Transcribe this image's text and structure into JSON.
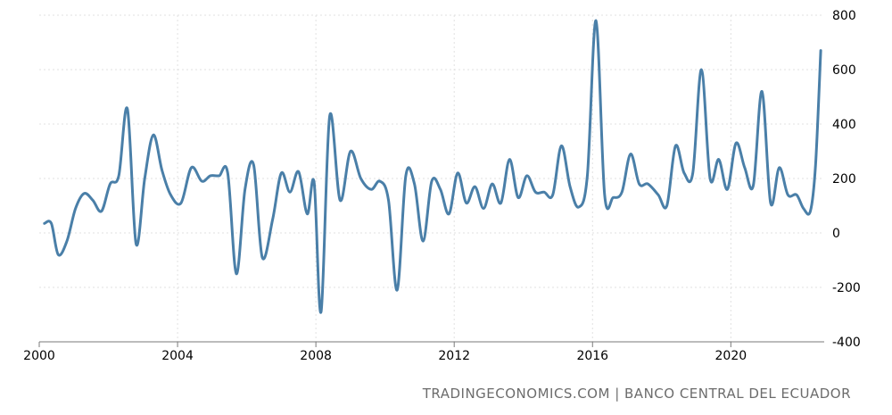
{
  "chart_data": {
    "type": "line",
    "title": "",
    "xlabel": "",
    "ylabel": "",
    "xlim": [
      2000.0,
      2022.7
    ],
    "ylim": [
      -400,
      800
    ],
    "x_ticks": [
      2000,
      2004,
      2008,
      2012,
      2016,
      2020
    ],
    "x_tick_labels": [
      "2000",
      "2004",
      "2008",
      "2012",
      "2016",
      "2020"
    ],
    "y_ticks": [
      800,
      600,
      400,
      200,
      0,
      -200,
      -400
    ],
    "y_tick_labels": [
      "800",
      "600",
      "400",
      "200",
      "0",
      "-200",
      "-400"
    ],
    "grid": true,
    "line_color": "#4a7fa8",
    "series": [
      {
        "x": [
          2000.15,
          2000.35,
          2000.55,
          2000.8,
          2001.05,
          2001.3,
          2001.55,
          2001.8,
          2002.05,
          2002.3,
          2002.55,
          2002.8,
          2003.05,
          2003.3,
          2003.55,
          2003.8,
          2004.1,
          2004.4,
          2004.7,
          2004.95,
          2005.2,
          2005.45,
          2005.7,
          2005.95,
          2006.2,
          2006.45,
          2006.75,
          2007.0,
          2007.25,
          2007.5,
          2007.75,
          2007.95,
          2008.15,
          2008.4,
          2008.7,
          2009.0,
          2009.3,
          2009.6,
          2009.85,
          2010.1,
          2010.35,
          2010.6,
          2010.85,
          2011.1,
          2011.35,
          2011.6,
          2011.85,
          2012.1,
          2012.35,
          2012.6,
          2012.85,
          2013.1,
          2013.35,
          2013.6,
          2013.85,
          2014.1,
          2014.35,
          2014.6,
          2014.85,
          2015.1,
          2015.35,
          2015.6,
          2015.85,
          2016.1,
          2016.35,
          2016.6,
          2016.85,
          2017.1,
          2017.35,
          2017.6,
          2017.9,
          2018.15,
          2018.4,
          2018.65,
          2018.9,
          2019.15,
          2019.4,
          2019.65,
          2019.9,
          2020.15,
          2020.4,
          2020.65,
          2020.9,
          2021.15,
          2021.4,
          2021.65,
          2021.9,
          2022.1,
          2022.3,
          2022.45,
          2022.6
        ],
        "values": [
          35,
          35,
          -80,
          -30,
          90,
          145,
          120,
          80,
          180,
          210,
          455,
          -40,
          200,
          360,
          230,
          140,
          110,
          240,
          190,
          210,
          210,
          220,
          -150,
          160,
          250,
          -90,
          50,
          220,
          150,
          225,
          70,
          185,
          -290,
          430,
          120,
          300,
          200,
          160,
          190,
          120,
          -210,
          210,
          180,
          -30,
          190,
          160,
          70,
          220,
          110,
          170,
          90,
          180,
          110,
          270,
          130,
          210,
          150,
          150,
          140,
          320,
          170,
          95,
          210,
          780,
          140,
          130,
          150,
          290,
          180,
          180,
          140,
          100,
          320,
          220,
          220,
          600,
          200,
          270,
          160,
          330,
          240,
          175,
          520,
          110,
          240,
          140,
          140,
          90,
          80,
          250,
          670
        ]
      }
    ],
    "source": "TRADINGECONOMICS.COM  |  BANCO CENTRAL DEL ECUADOR"
  }
}
